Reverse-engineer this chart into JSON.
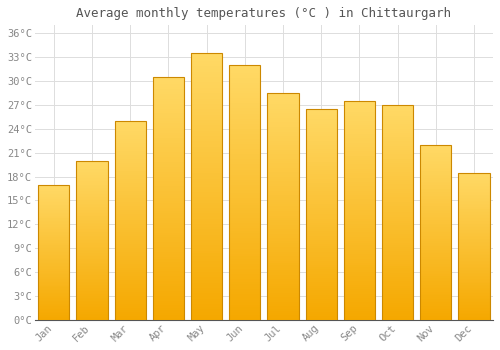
{
  "title": "Average monthly temperatures (°C ) in Chittaurgarh",
  "months": [
    "Jan",
    "Feb",
    "Mar",
    "Apr",
    "May",
    "Jun",
    "Jul",
    "Aug",
    "Sep",
    "Oct",
    "Nov",
    "Dec"
  ],
  "values": [
    17,
    20,
    25,
    30.5,
    33.5,
    32,
    28.5,
    26.5,
    27.5,
    27,
    22,
    18.5
  ],
  "bar_color_bottom": "#F5A800",
  "bar_color_top": "#FFD966",
  "bar_edge_color": "#CC8800",
  "background_color": "#FFFFFF",
  "grid_color": "#DDDDDD",
  "tick_label_color": "#888888",
  "title_color": "#555555",
  "ylim": [
    0,
    37
  ],
  "yticks": [
    0,
    3,
    6,
    9,
    12,
    15,
    18,
    21,
    24,
    27,
    30,
    33,
    36
  ],
  "bar_width": 0.82,
  "figsize": [
    5.0,
    3.5
  ],
  "dpi": 100
}
